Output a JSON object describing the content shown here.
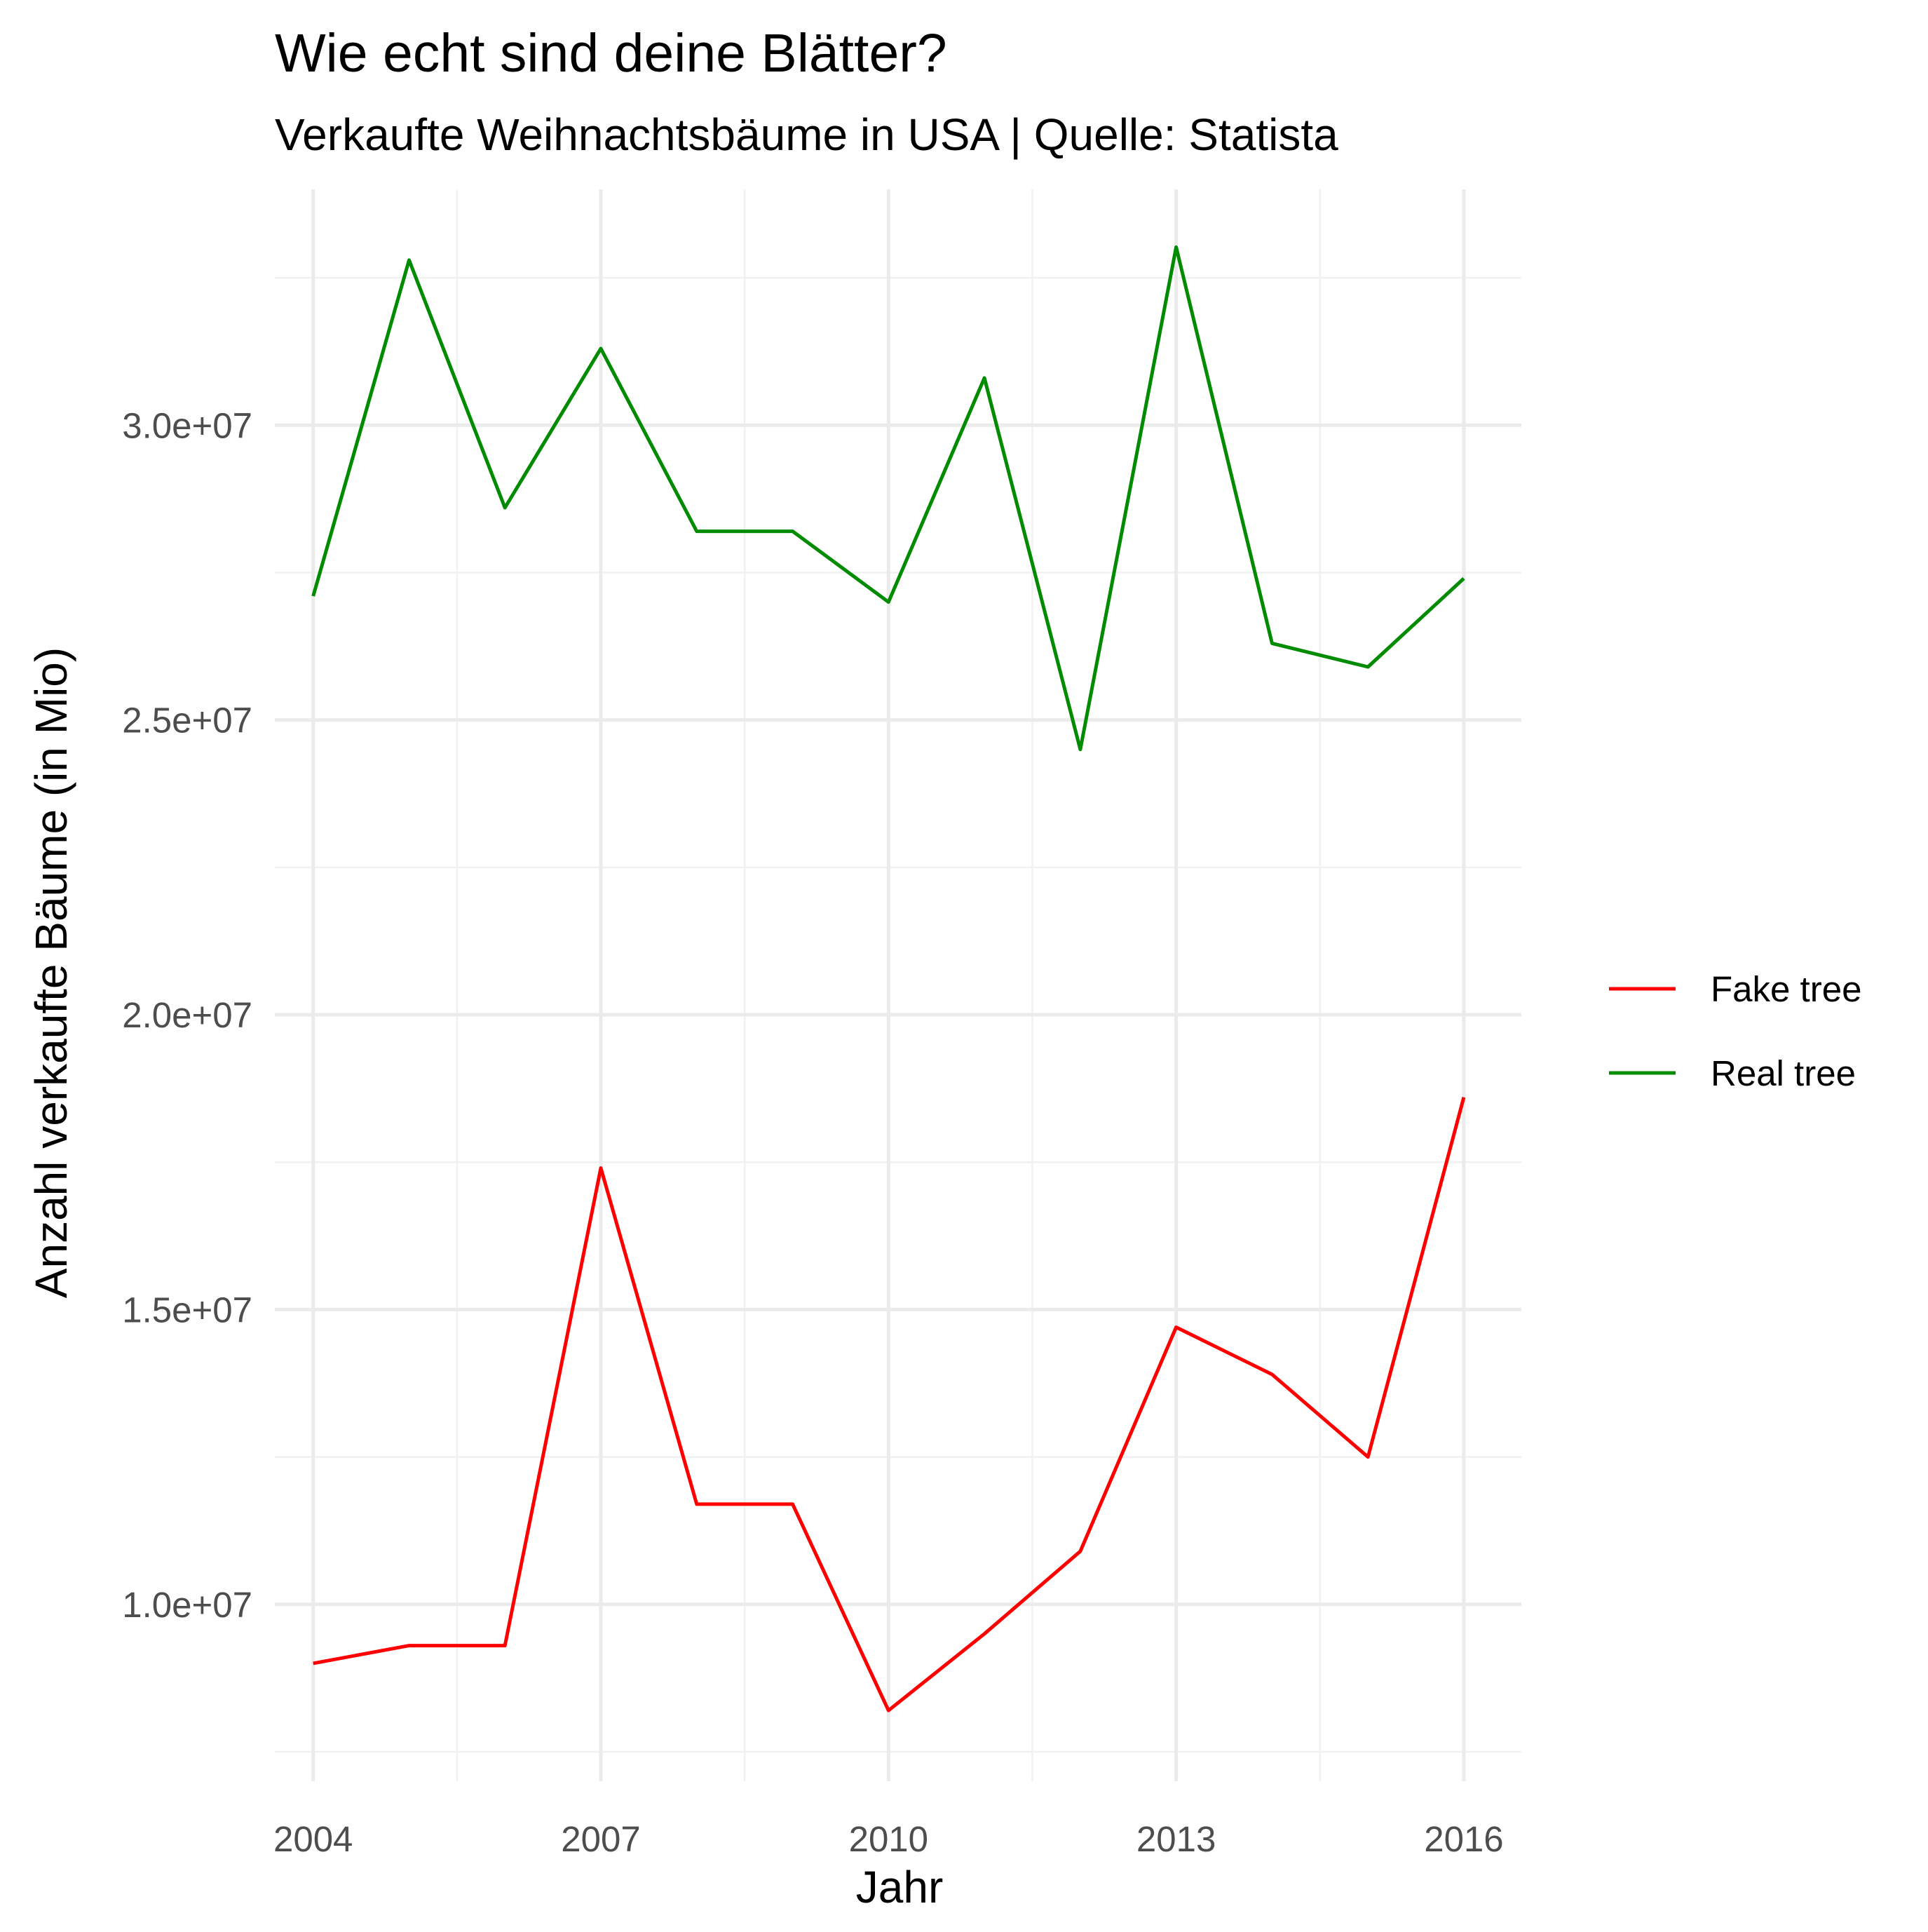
{
  "chart_data": {
    "type": "line",
    "title": "Wie echt sind deine Blätter?",
    "subtitle": "Verkaufte Weihnachtsbäume in USA | Quelle: Statista",
    "xlabel": "Jahr",
    "ylabel": "Anzahl verkaufte Bäume (in Mio)",
    "x": [
      2004,
      2005,
      2006,
      2007,
      2008,
      2009,
      2010,
      2011,
      2012,
      2013,
      2014,
      2015,
      2016
    ],
    "xlim": [
      2003.6,
      2016.6
    ],
    "ylim": [
      7000000,
      34000000
    ],
    "x_ticks": [
      2004,
      2007,
      2010,
      2013,
      2016
    ],
    "x_tick_labels": [
      "2004",
      "2007",
      "2010",
      "2013",
      "2016"
    ],
    "y_ticks": [
      10000000,
      15000000,
      20000000,
      25000000,
      30000000
    ],
    "y_tick_labels": [
      "1.0e+07",
      "1.5e+07",
      "2.0e+07",
      "2.5e+07",
      "3.0e+07"
    ],
    "grid": true,
    "legend_position": "right",
    "series": [
      {
        "name": "Fake tree",
        "color": "#ff0000",
        "values": [
          9000000,
          9300000,
          9300000,
          17400000,
          11700000,
          11700000,
          8200000,
          9500000,
          10900000,
          14700000,
          13900000,
          12500000,
          18600000
        ]
      },
      {
        "name": "Real tree",
        "color": "#008b00",
        "values": [
          27100000,
          32800000,
          28600000,
          31300000,
          28200000,
          28200000,
          27000000,
          30800000,
          24500000,
          33020000,
          26300000,
          25900000,
          27400000
        ]
      }
    ]
  }
}
